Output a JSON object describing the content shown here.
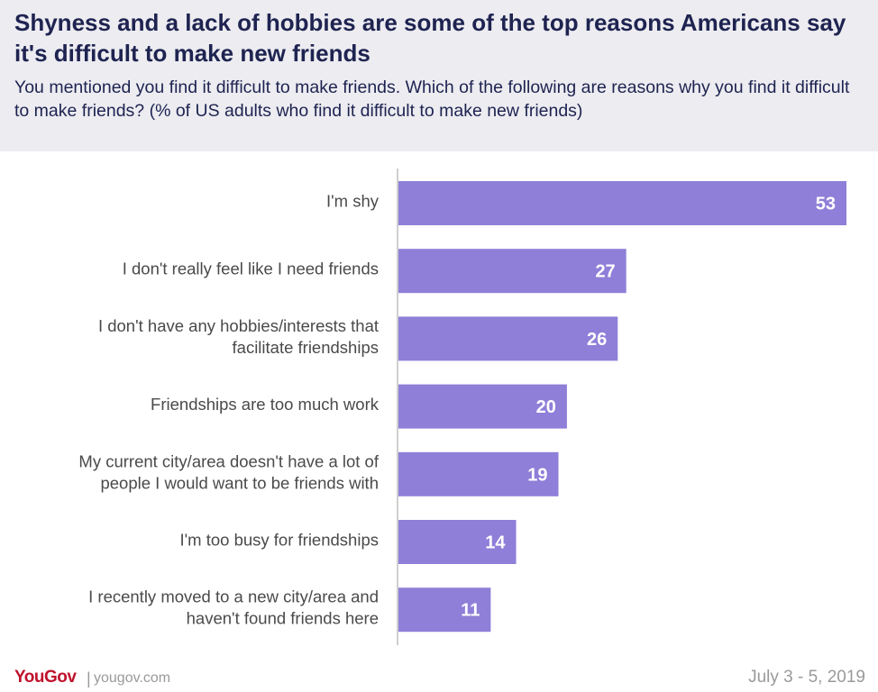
{
  "header": {
    "title": "Shyness and a lack of hobbies are some of the top reasons Americans say it's difficult to make new friends",
    "subtitle": "You mentioned you find it difficult to make friends. Which of the following are reasons why you find it difficult to make friends? (% of US adults who find it difficult to make new friends)"
  },
  "chart_data": {
    "type": "bar",
    "orientation": "horizontal",
    "categories": [
      [
        "I'm shy"
      ],
      [
        "I don't really feel like I need friends"
      ],
      [
        "I don't have any hobbies/interests that",
        "facilitate friendships"
      ],
      [
        "Friendships are too much work"
      ],
      [
        "My current city/area doesn't have a lot of",
        "people I would want to be friends with"
      ],
      [
        "I'm too busy for friendships"
      ],
      [
        "I recently moved to a new city/area and",
        "haven't found friends here"
      ]
    ],
    "values": [
      53,
      27,
      26,
      20,
      19,
      14,
      11
    ],
    "value_labels": [
      "53",
      "27",
      "26",
      "20",
      "19",
      "14",
      "11"
    ],
    "title": "",
    "xlabel": "",
    "ylabel": "",
    "xlim": [
      0,
      53
    ],
    "grid": false,
    "legend": "none",
    "bar_color": "#8f7fd8",
    "axis_color": "#cfcfcf"
  },
  "footer": {
    "logo": "YouGov",
    "separator": "|",
    "site": "yougov.com",
    "date": "July 3 - 5, 2019"
  },
  "colors": {
    "header_bg": "#ececf1",
    "title": "#1e2350",
    "brand": "#c0122c"
  }
}
